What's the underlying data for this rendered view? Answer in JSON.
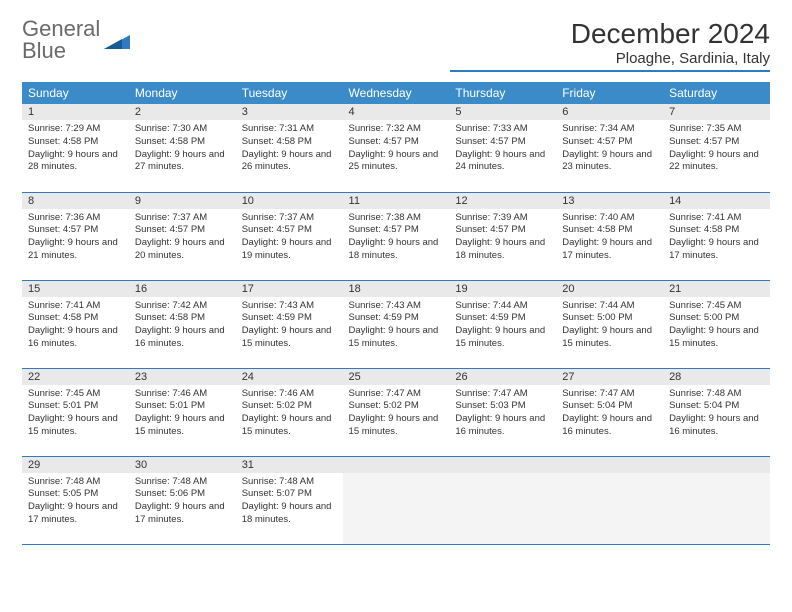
{
  "logo": {
    "line1": "General",
    "line2": "Blue"
  },
  "title": "December 2024",
  "location": "Ploaghe, Sardinia, Italy",
  "colors": {
    "header_bg": "#3b8bc9",
    "border": "#2f7bc2",
    "daynum_bg": "#e9e9e9",
    "text": "#333333"
  },
  "weekdays": [
    "Sunday",
    "Monday",
    "Tuesday",
    "Wednesday",
    "Thursday",
    "Friday",
    "Saturday"
  ],
  "weeks": [
    [
      {
        "n": "1",
        "sr": "7:29 AM",
        "ss": "4:58 PM",
        "dl": "9 hours and 28 minutes."
      },
      {
        "n": "2",
        "sr": "7:30 AM",
        "ss": "4:58 PM",
        "dl": "9 hours and 27 minutes."
      },
      {
        "n": "3",
        "sr": "7:31 AM",
        "ss": "4:58 PM",
        "dl": "9 hours and 26 minutes."
      },
      {
        "n": "4",
        "sr": "7:32 AM",
        "ss": "4:57 PM",
        "dl": "9 hours and 25 minutes."
      },
      {
        "n": "5",
        "sr": "7:33 AM",
        "ss": "4:57 PM",
        "dl": "9 hours and 24 minutes."
      },
      {
        "n": "6",
        "sr": "7:34 AM",
        "ss": "4:57 PM",
        "dl": "9 hours and 23 minutes."
      },
      {
        "n": "7",
        "sr": "7:35 AM",
        "ss": "4:57 PM",
        "dl": "9 hours and 22 minutes."
      }
    ],
    [
      {
        "n": "8",
        "sr": "7:36 AM",
        "ss": "4:57 PM",
        "dl": "9 hours and 21 minutes."
      },
      {
        "n": "9",
        "sr": "7:37 AM",
        "ss": "4:57 PM",
        "dl": "9 hours and 20 minutes."
      },
      {
        "n": "10",
        "sr": "7:37 AM",
        "ss": "4:57 PM",
        "dl": "9 hours and 19 minutes."
      },
      {
        "n": "11",
        "sr": "7:38 AM",
        "ss": "4:57 PM",
        "dl": "9 hours and 18 minutes."
      },
      {
        "n": "12",
        "sr": "7:39 AM",
        "ss": "4:57 PM",
        "dl": "9 hours and 18 minutes."
      },
      {
        "n": "13",
        "sr": "7:40 AM",
        "ss": "4:58 PM",
        "dl": "9 hours and 17 minutes."
      },
      {
        "n": "14",
        "sr": "7:41 AM",
        "ss": "4:58 PM",
        "dl": "9 hours and 17 minutes."
      }
    ],
    [
      {
        "n": "15",
        "sr": "7:41 AM",
        "ss": "4:58 PM",
        "dl": "9 hours and 16 minutes."
      },
      {
        "n": "16",
        "sr": "7:42 AM",
        "ss": "4:58 PM",
        "dl": "9 hours and 16 minutes."
      },
      {
        "n": "17",
        "sr": "7:43 AM",
        "ss": "4:59 PM",
        "dl": "9 hours and 15 minutes."
      },
      {
        "n": "18",
        "sr": "7:43 AM",
        "ss": "4:59 PM",
        "dl": "9 hours and 15 minutes."
      },
      {
        "n": "19",
        "sr": "7:44 AM",
        "ss": "4:59 PM",
        "dl": "9 hours and 15 minutes."
      },
      {
        "n": "20",
        "sr": "7:44 AM",
        "ss": "5:00 PM",
        "dl": "9 hours and 15 minutes."
      },
      {
        "n": "21",
        "sr": "7:45 AM",
        "ss": "5:00 PM",
        "dl": "9 hours and 15 minutes."
      }
    ],
    [
      {
        "n": "22",
        "sr": "7:45 AM",
        "ss": "5:01 PM",
        "dl": "9 hours and 15 minutes."
      },
      {
        "n": "23",
        "sr": "7:46 AM",
        "ss": "5:01 PM",
        "dl": "9 hours and 15 minutes."
      },
      {
        "n": "24",
        "sr": "7:46 AM",
        "ss": "5:02 PM",
        "dl": "9 hours and 15 minutes."
      },
      {
        "n": "25",
        "sr": "7:47 AM",
        "ss": "5:02 PM",
        "dl": "9 hours and 15 minutes."
      },
      {
        "n": "26",
        "sr": "7:47 AM",
        "ss": "5:03 PM",
        "dl": "9 hours and 16 minutes."
      },
      {
        "n": "27",
        "sr": "7:47 AM",
        "ss": "5:04 PM",
        "dl": "9 hours and 16 minutes."
      },
      {
        "n": "28",
        "sr": "7:48 AM",
        "ss": "5:04 PM",
        "dl": "9 hours and 16 minutes."
      }
    ],
    [
      {
        "n": "29",
        "sr": "7:48 AM",
        "ss": "5:05 PM",
        "dl": "9 hours and 17 minutes."
      },
      {
        "n": "30",
        "sr": "7:48 AM",
        "ss": "5:06 PM",
        "dl": "9 hours and 17 minutes."
      },
      {
        "n": "31",
        "sr": "7:48 AM",
        "ss": "5:07 PM",
        "dl": "9 hours and 18 minutes."
      },
      null,
      null,
      null,
      null
    ]
  ],
  "labels": {
    "sunrise": "Sunrise:",
    "sunset": "Sunset:",
    "daylight": "Daylight:"
  }
}
